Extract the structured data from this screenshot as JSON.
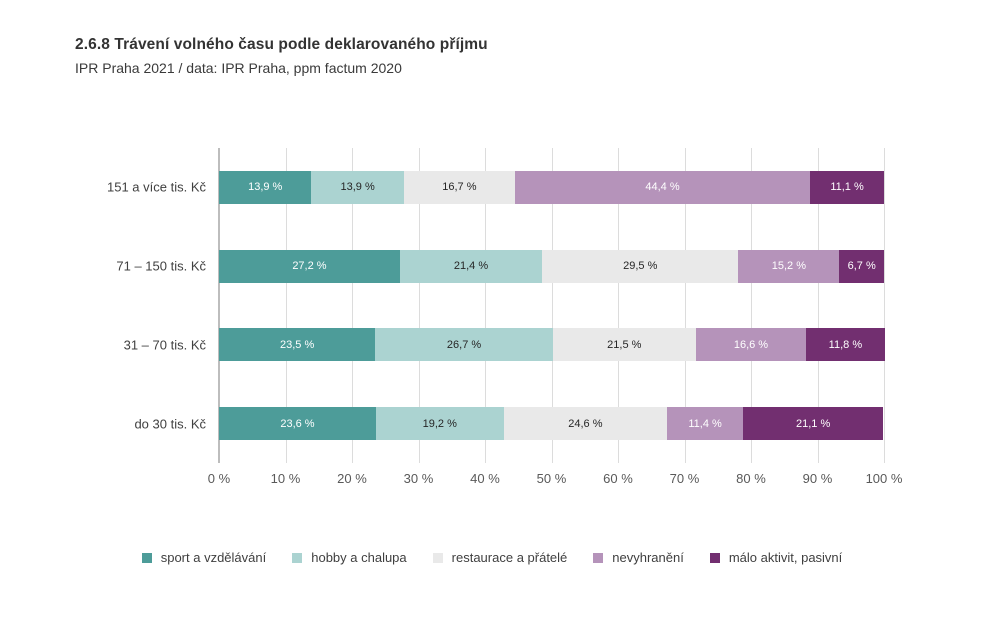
{
  "header": {
    "title": "2.6.8 Trávení volného času podle deklarovaného příjmu",
    "subtitle": "IPR Praha 2021 / data: IPR Praha, ppm factum 2020"
  },
  "chart_data": {
    "type": "bar",
    "orientation": "horizontal",
    "stacked": true,
    "title": "2.6.8 Trávení volného času podle deklarovaného příjmu",
    "subtitle": "IPR Praha 2021 / data: IPR Praha, ppm factum 2020",
    "xlabel": "",
    "ylabel": "",
    "xlim": [
      0,
      100
    ],
    "grid": true,
    "legend_position": "bottom",
    "x_ticks": [
      "0 %",
      "10 %",
      "20 %",
      "30 %",
      "40 %",
      "50 %",
      "60 %",
      "70 %",
      "80 %",
      "90 %",
      "100 %"
    ],
    "categories": [
      "151 a více tis. Kč",
      "71 – 150 tis. Kč",
      "31 – 70 tis. Kč",
      "do 30 tis. Kč"
    ],
    "series": [
      {
        "name": "sport a vzdělávání",
        "color": "#4d9c99",
        "label_color": "#ffffff",
        "values": [
          13.9,
          27.2,
          23.5,
          23.6
        ],
        "labels": [
          "13,9 %",
          "27,2 %",
          "23,5 %",
          "23,6 %"
        ]
      },
      {
        "name": "hobby a chalupa",
        "color": "#abd3d1",
        "label_color": "#262626",
        "values": [
          13.9,
          21.4,
          26.7,
          19.2
        ],
        "labels": [
          "13,9 %",
          "21,4 %",
          "26,7 %",
          "19,2 %"
        ]
      },
      {
        "name": "restaurace a přátelé",
        "color": "#e9e9e9",
        "label_color": "#262626",
        "values": [
          16.7,
          29.5,
          21.5,
          24.6
        ],
        "labels": [
          "16,7 %",
          "29,5 %",
          "21,5 %",
          "24,6 %"
        ]
      },
      {
        "name": "nevyhranění",
        "color": "#b593ba",
        "label_color": "#ffffff",
        "values": [
          44.4,
          15.2,
          16.6,
          11.4
        ],
        "labels": [
          "44,4 %",
          "15,2 %",
          "16,6 %",
          "11,4 %"
        ]
      },
      {
        "name": "málo aktivit, pasivní",
        "color": "#722f70",
        "label_color": "#ffffff",
        "values": [
          11.1,
          6.7,
          11.8,
          21.1
        ],
        "labels": [
          "11,1 %",
          "6,7 %",
          "11,8 %",
          "21,1 %"
        ]
      }
    ],
    "colors": {
      "gridline": "#dcdcdc",
      "zero_line": "#bdbdbd",
      "axis_text": "#595959",
      "row_label_text": "#404040",
      "legend_text": "#3f3f3f"
    }
  }
}
